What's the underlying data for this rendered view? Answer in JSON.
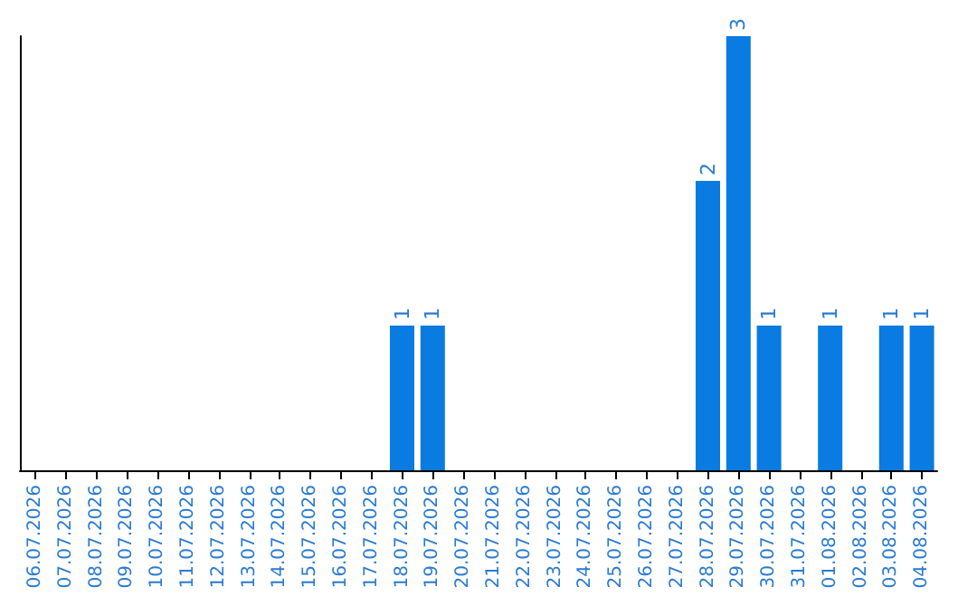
{
  "chart_data": {
    "type": "bar",
    "categories": [
      "06.07.2026",
      "07.07.2026",
      "08.07.2026",
      "09.07.2026",
      "10.07.2026",
      "11.07.2026",
      "12.07.2026",
      "13.07.2026",
      "14.07.2026",
      "15.07.2026",
      "16.07.2026",
      "17.07.2026",
      "18.07.2026",
      "19.07.2026",
      "20.07.2026",
      "21.07.2026",
      "22.07.2026",
      "23.07.2026",
      "24.07.2026",
      "25.07.2026",
      "26.07.2026",
      "27.07.2026",
      "28.07.2026",
      "29.07.2026",
      "30.07.2026",
      "31.07.2026",
      "01.08.2026",
      "02.08.2026",
      "03.08.2026",
      "04.08.2026"
    ],
    "values": [
      null,
      null,
      null,
      null,
      null,
      null,
      null,
      null,
      null,
      null,
      null,
      null,
      1,
      1,
      null,
      null,
      null,
      null,
      null,
      null,
      null,
      null,
      2,
      3,
      1,
      null,
      1,
      null,
      1,
      1
    ],
    "data_labels": true,
    "color": "#0a7be0",
    "grid": false,
    "tick_labels": "x"
  }
}
